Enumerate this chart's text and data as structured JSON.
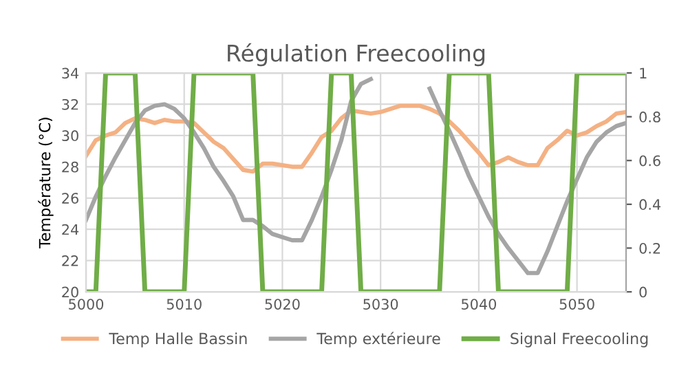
{
  "chart_data": {
    "type": "line",
    "title": "Régulation Freecooling",
    "ylabel": "Température (°C)",
    "x": [
      5000,
      5001,
      5002,
      5003,
      5004,
      5005,
      5006,
      5007,
      5008,
      5009,
      5010,
      5011,
      5012,
      5013,
      5014,
      5015,
      5016,
      5017,
      5018,
      5019,
      5020,
      5021,
      5022,
      5023,
      5024,
      5025,
      5026,
      5027,
      5028,
      5029,
      5030,
      5031,
      5032,
      5033,
      5034,
      5035,
      5036,
      5037,
      5038,
      5039,
      5040,
      5041,
      5042,
      5043,
      5044,
      5045,
      5046,
      5047,
      5048,
      5049,
      5050,
      5051,
      5052,
      5053,
      5054,
      5055
    ],
    "series": [
      {
        "name": "Temp Halle Bassin",
        "color": "#f4b183",
        "values": [
          28.7,
          29.7,
          30.0,
          30.2,
          30.8,
          31.1,
          31.0,
          30.8,
          31.0,
          30.9,
          30.9,
          30.8,
          30.2,
          29.6,
          29.2,
          28.5,
          27.8,
          27.7,
          28.2,
          28.2,
          28.1,
          28.0,
          28.0,
          28.9,
          29.9,
          30.3,
          31.1,
          31.6,
          31.5,
          31.4,
          31.5,
          31.7,
          31.9,
          31.9,
          31.9,
          31.7,
          31.4,
          30.9,
          30.3,
          29.6,
          28.9,
          28.1,
          28.3,
          28.6,
          28.3,
          28.1,
          28.1,
          29.2,
          29.7,
          30.3,
          30.0,
          30.2,
          30.6,
          30.9,
          31.4,
          31.5
        ]
      },
      {
        "name": "Temp extérieure",
        "color": "#a5a5a5",
        "values": [
          24.6,
          26.1,
          27.4,
          28.6,
          29.7,
          30.8,
          31.6,
          31.9,
          32.0,
          31.7,
          31.1,
          30.2,
          29.2,
          28.0,
          27.1,
          26.1,
          24.6,
          24.6,
          24.2,
          23.7,
          23.5,
          23.3,
          23.3,
          24.6,
          26.1,
          27.8,
          29.7,
          32.2,
          33.3,
          33.6,
          null,
          null,
          null,
          null,
          null,
          33.0,
          31.6,
          30.3,
          28.9,
          27.4,
          26.1,
          24.8,
          23.7,
          22.8,
          22.0,
          21.2,
          21.2,
          22.6,
          24.2,
          25.8,
          27.2,
          28.6,
          29.6,
          30.2,
          30.6,
          30.8
        ]
      },
      {
        "name": "Signal Freecooling",
        "color": "#70ad47",
        "axis": "y2",
        "x": [
          5000,
          5001,
          5002,
          5005,
          5006,
          5010,
          5011,
          5017,
          5018,
          5024,
          5025,
          5027,
          5028,
          5036,
          5037,
          5041,
          5042,
          5049,
          5050,
          5055
        ],
        "values": [
          0,
          0,
          1,
          1,
          0,
          0,
          1,
          1,
          0,
          0,
          1,
          1,
          0,
          0,
          1,
          1,
          0,
          0,
          1,
          1
        ]
      }
    ],
    "xlim": [
      5000,
      5055
    ],
    "xticks": [
      5000,
      5010,
      5020,
      5030,
      5040,
      5050
    ],
    "ylim": [
      20,
      34
    ],
    "yticks": [
      20,
      22,
      24,
      26,
      28,
      30,
      32,
      34
    ],
    "y2lim": [
      0,
      1
    ],
    "y2ticks": [
      0,
      0.2,
      0.4,
      0.6,
      0.8,
      1
    ],
    "grid": true,
    "legend": "bottom",
    "marker": "none",
    "line_style": "solid"
  }
}
